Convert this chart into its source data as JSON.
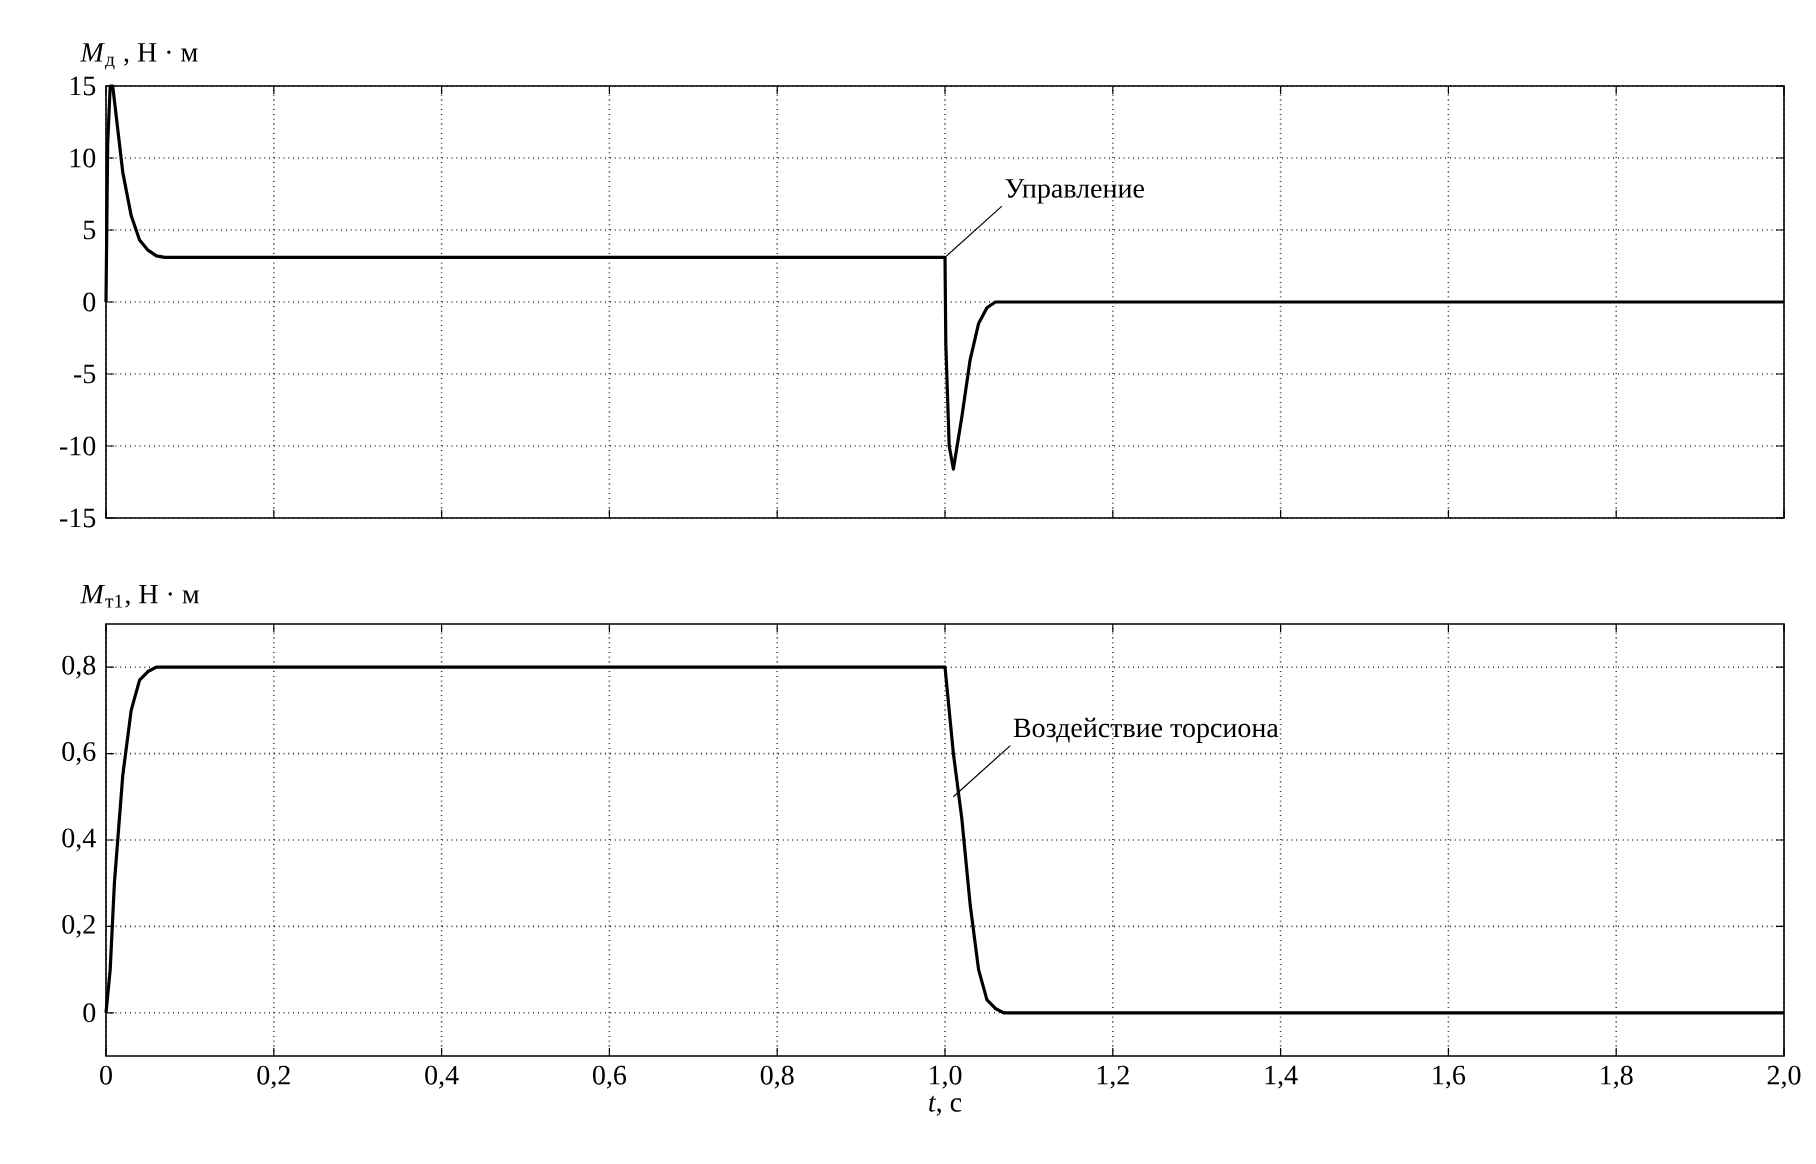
{
  "chart_data": [
    {
      "type": "line",
      "ylabel": "*M*$_{д}$ , Н · м",
      "x": [
        0,
        0.002,
        0.005,
        0.008,
        0.012,
        0.02,
        0.03,
        0.04,
        0.05,
        0.06,
        0.07,
        1.0,
        1.001,
        1.005,
        1.01,
        1.02,
        1.03,
        1.04,
        1.05,
        1.06,
        2.0
      ],
      "series": [
        {
          "color": "#000000",
          "values": [
            0,
            11,
            15,
            15,
            13,
            9,
            6,
            4.3,
            3.6,
            3.2,
            3.1,
            3.1,
            -3,
            -10,
            -11.6,
            -8,
            -4,
            -1.5,
            -0.4,
            0,
            0
          ]
        }
      ],
      "xlim": [
        0,
        2.0
      ],
      "ylim": [
        -15,
        15
      ],
      "yticks": [
        15,
        10,
        5,
        0,
        -5,
        -10,
        -15
      ],
      "xticks": [
        {
          "value": 0,
          "label": null
        },
        {
          "value": 0.2,
          "label": null
        },
        {
          "value": 0.4,
          "label": null
        },
        {
          "value": 0.6,
          "label": null
        },
        {
          "value": 0.8,
          "label": null
        },
        {
          "value": 1.0,
          "label": null
        },
        {
          "value": 1.2,
          "label": null
        },
        {
          "value": 1.4,
          "label": null
        },
        {
          "value": 1.6,
          "label": null
        },
        {
          "value": 1.8,
          "label": null
        },
        {
          "value": 2.0,
          "label": null
        }
      ],
      "tick_labels": "y",
      "grid": true,
      "line_style": "solid",
      "annotations": [
        {
          "text": "Управление",
          "x": 1.0,
          "y": 3.1
        }
      ]
    },
    {
      "type": "line",
      "ylabel": "*M*$_{т1}$, Н · м",
      "xlabel": "*t*, с",
      "x": [
        0,
        0.005,
        0.01,
        0.02,
        0.03,
        0.04,
        0.05,
        0.06,
        1.0,
        1.01,
        1.02,
        1.03,
        1.04,
        1.05,
        1.06,
        1.07,
        2.0
      ],
      "series": [
        {
          "color": "#000000",
          "values": [
            0,
            0.1,
            0.3,
            0.55,
            0.7,
            0.77,
            0.79,
            0.8,
            0.8,
            0.6,
            0.45,
            0.25,
            0.1,
            0.03,
            0.01,
            0,
            0
          ]
        }
      ],
      "xlim": [
        0,
        2.0
      ],
      "ylim": [
        -0.1,
        0.9
      ],
      "yticks": [
        {
          "value": 0,
          "label": "0"
        },
        {
          "value": 0.2,
          "label": "0,2"
        },
        {
          "value": 0.4,
          "label": "0,4"
        },
        {
          "value": 0.6,
          "label": "0,6"
        },
        {
          "value": 0.8,
          "label": "0,8"
        }
      ],
      "xticks": [
        {
          "value": 0,
          "label": "0"
        },
        {
          "value": 0.2,
          "label": "0,2"
        },
        {
          "value": 0.4,
          "label": "0,4"
        },
        {
          "value": 0.6,
          "label": "0,6"
        },
        {
          "value": 0.8,
          "label": "0,8"
        },
        {
          "value": 1.0,
          "label": "1,0"
        },
        {
          "value": 1.2,
          "label": "1,2"
        },
        {
          "value": 1.4,
          "label": "1,4"
        },
        {
          "value": 1.6,
          "label": "1,6"
        },
        {
          "value": 1.8,
          "label": "1,8"
        },
        {
          "value": 2.0,
          "label": "2,0"
        }
      ],
      "grid": true,
      "line_style": "solid",
      "annotations": [
        {
          "text": "Воздействие торсиона",
          "x": 1.01,
          "y": 0.5
        }
      ]
    }
  ]
}
